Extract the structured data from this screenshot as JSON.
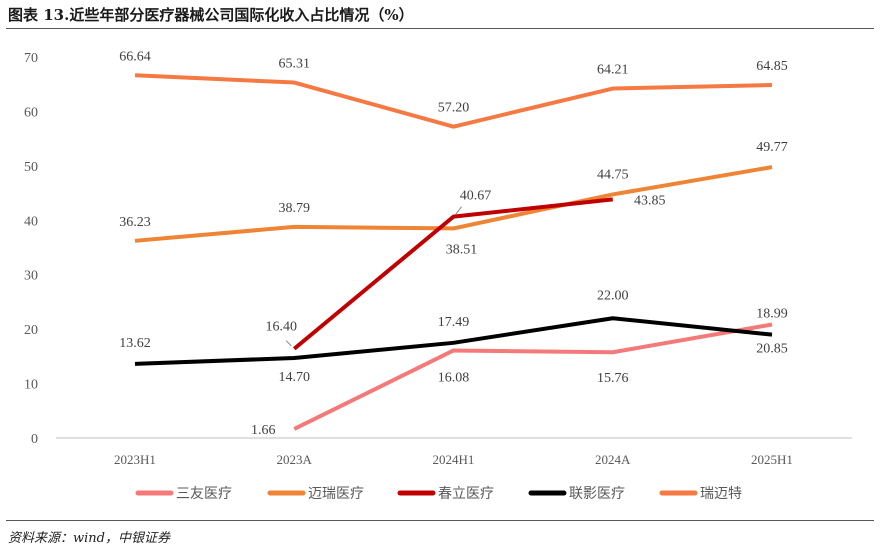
{
  "title": "图表 13.近些年部分医疗器械公司国际化收入占比情况（%）",
  "source": "资料来源：wind，中银证券",
  "chart_data": {
    "type": "line",
    "title": "近些年部分医疗器械公司国际化收入占比情况（%）",
    "categories": [
      "2023H1",
      "2023A",
      "2024H1",
      "2024A",
      "2025H1"
    ],
    "ylim": [
      0,
      70
    ],
    "yticks": [
      0,
      10,
      20,
      30,
      40,
      50,
      60,
      70
    ],
    "grid": false,
    "legend_position": "bottom",
    "series": [
      {
        "name": "三友医疗",
        "color": "#f47a7a",
        "values": [
          null,
          1.66,
          16.08,
          15.76,
          20.85
        ],
        "labels": [
          null,
          "1.66",
          "16.08",
          "15.76",
          "20.85"
        ]
      },
      {
        "name": "迈瑞医疗",
        "color": "#ee8434",
        "values": [
          36.23,
          38.79,
          38.51,
          44.75,
          49.77
        ],
        "labels": [
          "36.23",
          "38.79",
          "38.51",
          "44.75",
          "49.77"
        ]
      },
      {
        "name": "春立医疗",
        "color": "#c00000",
        "values": [
          null,
          16.4,
          40.67,
          43.85,
          null
        ],
        "labels": [
          null,
          "16.40",
          "40.67",
          "43.85",
          null
        ]
      },
      {
        "name": "联影医疗",
        "color": "#000000",
        "values": [
          13.62,
          14.7,
          17.49,
          22.0,
          18.99
        ],
        "labels": [
          "13.62",
          "14.70",
          "17.49",
          "22.00",
          "18.99"
        ]
      },
      {
        "name": "瑞迈特",
        "color": "#f57942",
        "values": [
          66.64,
          65.31,
          57.2,
          64.21,
          64.85
        ],
        "labels": [
          "66.64",
          "65.31",
          "57.20",
          "64.21",
          "64.85"
        ]
      }
    ]
  }
}
